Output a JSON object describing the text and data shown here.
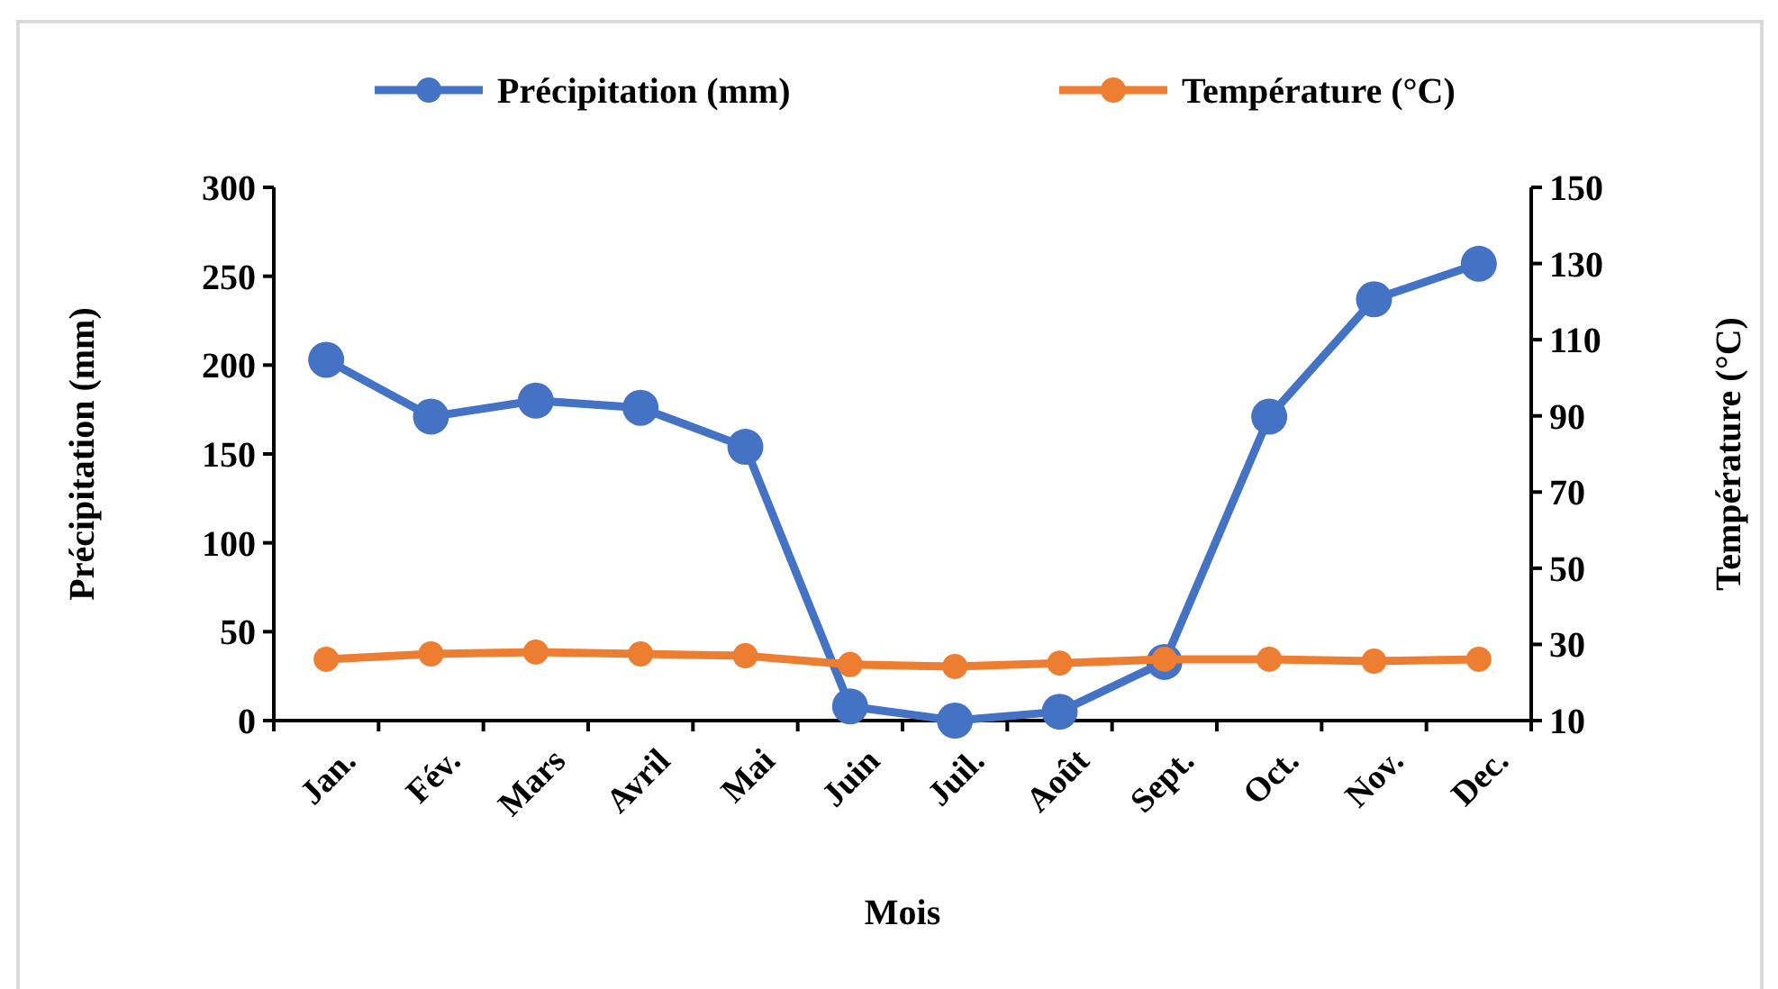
{
  "chart_data": {
    "type": "line",
    "xlabel": "Mois",
    "ylabel": "Précipitation (mm)",
    "y2label": "Température (°C)",
    "categories": [
      "Jan.",
      "Fév.",
      "Mars",
      "Avril",
      "Mai",
      "Juin",
      "Juil.",
      "Août",
      "Sept.",
      "Oct.",
      "Nov.",
      "Dec."
    ],
    "series": [
      {
        "name": "Précipitation (mm)",
        "color": "#4472c4",
        "values": [
          203,
          171,
          180,
          176,
          154,
          8,
          0,
          5,
          33,
          171,
          237,
          257
        ]
      },
      {
        "name": "Température (°C)",
        "color": "#ed7d31",
        "axis": "y2",
        "values": [
          26.1,
          27.5,
          28,
          27.5,
          27,
          24.7,
          24.2,
          25.1,
          26.1,
          26.1,
          25.6,
          26.1
        ]
      }
    ],
    "ylim": [
      0,
      300
    ],
    "yticks": [
      0,
      50,
      100,
      150,
      200,
      250,
      300
    ],
    "y2lim": [
      10,
      150
    ],
    "y2ticks": [
      10,
      30,
      50,
      70,
      90,
      110,
      130,
      150
    ],
    "legend": "top",
    "marker": "circle",
    "line_style": "solid",
    "grid": false
  }
}
